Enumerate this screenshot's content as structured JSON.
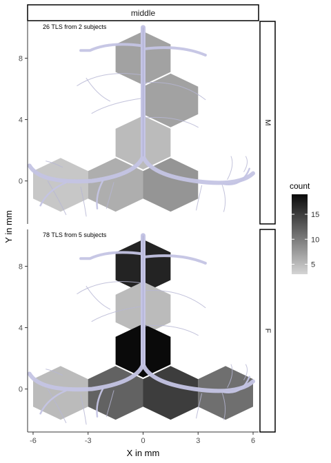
{
  "chart_data": {
    "type": "heatmap",
    "subtype": "hexbin",
    "strip_top": "middle",
    "xlabel": "X in mm",
    "ylabel": "Y in mm",
    "xlim": [
      -6.3,
      6.3
    ],
    "ylim": [
      -2.8,
      10.4
    ],
    "x_ticks": [
      -6,
      -3,
      0,
      3,
      6
    ],
    "x_tick_labels": [
      "-6",
      "-3",
      "0",
      "3",
      "6"
    ],
    "y_ticks": [
      0,
      4,
      8
    ],
    "y_tick_labels": [
      "0",
      "4",
      "8"
    ],
    "legend": {
      "title": "count",
      "position": "right",
      "min": 3,
      "max": 19,
      "ticks": [
        5,
        10,
        15
      ],
      "tick_labels": [
        "5",
        "10",
        "15"
      ]
    },
    "panels": [
      {
        "facet": "M",
        "annotation": "26 TLS from 2 subjects",
        "cells": [
          {
            "x": 0,
            "y": 8,
            "count": 7
          },
          {
            "x": 1.5,
            "y": 5.25,
            "count": 7
          },
          {
            "x": 0,
            "y": 2.5,
            "count": 5
          },
          {
            "x": -4.5,
            "y": -0.25,
            "count": 4
          },
          {
            "x": -1.5,
            "y": -0.25,
            "count": 6
          },
          {
            "x": 1.5,
            "y": -0.25,
            "count": 8
          }
        ]
      },
      {
        "facet": "F",
        "annotation": "78 TLS from 5 subjects",
        "cells": [
          {
            "x": 0,
            "y": 8,
            "count": 17
          },
          {
            "x": 0,
            "y": 5.25,
            "count": 5
          },
          {
            "x": 0,
            "y": 2.5,
            "count": 19
          },
          {
            "x": -4.5,
            "y": -0.25,
            "count": 5
          },
          {
            "x": -1.5,
            "y": -0.25,
            "count": 12
          },
          {
            "x": 1.5,
            "y": -0.25,
            "count": 15
          },
          {
            "x": 4.5,
            "y": -0.25,
            "count": 11
          }
        ]
      }
    ]
  }
}
